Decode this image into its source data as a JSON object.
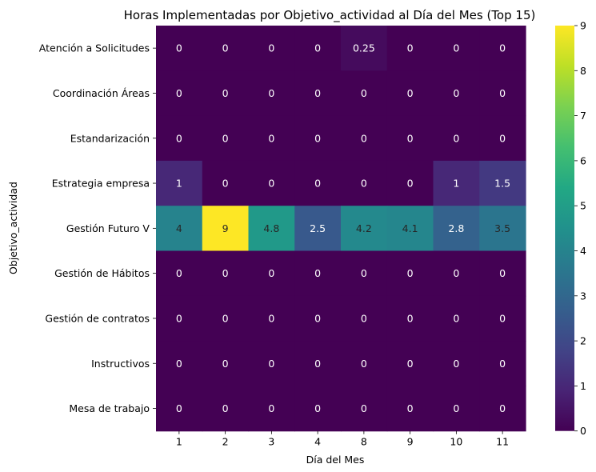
{
  "chart_data": {
    "type": "heatmap",
    "title": "Horas Implementadas por Objetivo_actividad al Día del Mes (Top 15)",
    "xlabel": "Día del Mes",
    "ylabel": "Objetivo_actividad",
    "x": [
      "1",
      "2",
      "3",
      "4",
      "8",
      "9",
      "10",
      "11"
    ],
    "y": [
      "Atención a Solicitudes",
      "Coordinación Áreas",
      "Estandarización",
      "Estrategia empresa",
      "Gestión Futuro V",
      "Gestión de Hábitos",
      "Gestión de contratos",
      "Instructivos",
      "Mesa de trabajo"
    ],
    "values": [
      [
        0,
        0,
        0,
        0,
        0.25,
        0,
        0,
        0
      ],
      [
        0,
        0,
        0,
        0,
        0,
        0,
        0,
        0
      ],
      [
        0,
        0,
        0,
        0,
        0,
        0,
        0,
        0
      ],
      [
        1,
        0,
        0,
        0,
        0,
        0,
        1,
        1.5
      ],
      [
        4,
        9,
        4.8,
        2.5,
        4.2,
        4.1,
        2.8,
        3.5
      ],
      [
        0,
        0,
        0,
        0,
        0,
        0,
        0,
        0
      ],
      [
        0,
        0,
        0,
        0,
        0,
        0,
        0,
        0
      ],
      [
        0,
        0,
        0,
        0,
        0,
        0,
        0,
        0
      ],
      [
        0,
        0,
        0,
        0,
        0,
        0,
        0,
        0
      ]
    ],
    "value_labels": [
      [
        "0",
        "0",
        "0",
        "0",
        "0.25",
        "0",
        "0",
        "0"
      ],
      [
        "0",
        "0",
        "0",
        "0",
        "0",
        "0",
        "0",
        "0"
      ],
      [
        "0",
        "0",
        "0",
        "0",
        "0",
        "0",
        "0",
        "0"
      ],
      [
        "1",
        "0",
        "0",
        "0",
        "0",
        "0",
        "1",
        "1.5"
      ],
      [
        "4",
        "9",
        "4.8",
        "2.5",
        "4.2",
        "4.1",
        "2.8",
        "3.5"
      ],
      [
        "0",
        "0",
        "0",
        "0",
        "0",
        "0",
        "0",
        "0"
      ],
      [
        "0",
        "0",
        "0",
        "0",
        "0",
        "0",
        "0",
        "0"
      ],
      [
        "0",
        "0",
        "0",
        "0",
        "0",
        "0",
        "0",
        "0"
      ],
      [
        "0",
        "0",
        "0",
        "0",
        "0",
        "0",
        "0",
        "0"
      ]
    ],
    "colorbar": {
      "range": [
        0,
        9
      ],
      "ticks": [
        "0",
        "1",
        "2",
        "3",
        "4",
        "5",
        "6",
        "7",
        "8",
        "9"
      ],
      "colormap": "viridis"
    },
    "grid": false
  }
}
